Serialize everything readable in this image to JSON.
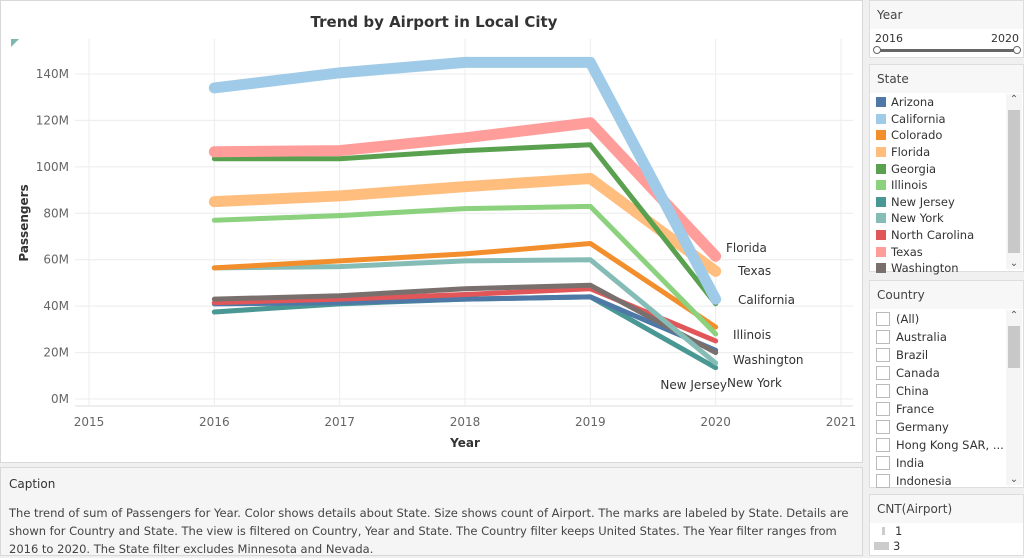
{
  "chart_data": {
    "type": "line",
    "title": "Trend by Airport in Local City",
    "xlabel": "Year",
    "ylabel": "Passengers",
    "x_ticks": [
      "2015",
      "2016",
      "2017",
      "2018",
      "2019",
      "2020",
      "2021"
    ],
    "y_ticks": [
      "0M",
      "20M",
      "40M",
      "60M",
      "80M",
      "100M",
      "120M",
      "140M"
    ],
    "xlim": [
      2015,
      2021
    ],
    "ylim": [
      0,
      140000000
    ],
    "x": [
      2016,
      2017,
      2018,
      2019,
      2020
    ],
    "series": [
      {
        "name": "California",
        "color": "#a0cbe8",
        "airports": 3,
        "values": [
          134,
          140.5,
          145,
          145,
          43
        ],
        "label": "California"
      },
      {
        "name": "Texas",
        "color": "#ff9d9a",
        "airports": 3,
        "values": [
          106.5,
          107,
          112.5,
          119,
          61.5
        ],
        "label": "Texas"
      },
      {
        "name": "Georgia",
        "color": "#59a14f",
        "airports": 1,
        "values": [
          103.5,
          103.5,
          107,
          109.5,
          41
        ],
        "label": ""
      },
      {
        "name": "Florida",
        "color": "#ffbe7d",
        "airports": 3,
        "values": [
          85,
          87.5,
          91.5,
          95,
          55
        ],
        "label": "Florida"
      },
      {
        "name": "Illinois",
        "color": "#8cd17d",
        "airports": 1,
        "values": [
          77,
          79,
          82,
          83,
          28
        ],
        "label": "Illinois"
      },
      {
        "name": "Colorado",
        "color": "#f28e2b",
        "airports": 1,
        "values": [
          56.5,
          59.5,
          62.5,
          67,
          31
        ],
        "label": ""
      },
      {
        "name": "New York",
        "color": "#86bcb6",
        "airports": 1,
        "values": [
          56.5,
          57,
          59.5,
          60,
          15.5
        ],
        "label": "New York"
      },
      {
        "name": "Washington",
        "color": "#79706e",
        "airports": 1,
        "values": [
          43,
          44.5,
          47.5,
          49,
          20
        ],
        "label": "Washington"
      },
      {
        "name": "North Carolina",
        "color": "#e15759",
        "airports": 1,
        "values": [
          41.5,
          43,
          45,
          47.5,
          25
        ],
        "label": ""
      },
      {
        "name": "Arizona",
        "color": "#4e79a7",
        "airports": 1,
        "values": [
          41,
          41.5,
          43,
          44,
          21
        ],
        "label": ""
      },
      {
        "name": "New Jersey",
        "color": "#499894",
        "airports": 1,
        "values": [
          37.5,
          41,
          43,
          44,
          13.5
        ],
        "label": "New Jersey"
      }
    ],
    "value_unit": "M"
  },
  "caption": {
    "title": "Caption",
    "text": "The trend of sum of Passengers for Year.  Color shows details about State.  Size shows count of Airport.  The marks are labeled by State.  Details are shown for Country and State. The view is filtered on Country, Year and State. The Country filter keeps United States. The Year filter ranges from 2016 to 2020. The State filter excludes Minnesota and Nevada."
  },
  "year_filter": {
    "title": "Year",
    "min": "2016",
    "max": "2020"
  },
  "state_legend": {
    "title": "State",
    "items": [
      {
        "label": "Arizona",
        "color": "#4e79a7"
      },
      {
        "label": "California",
        "color": "#a0cbe8"
      },
      {
        "label": "Colorado",
        "color": "#f28e2b"
      },
      {
        "label": "Florida",
        "color": "#ffbe7d"
      },
      {
        "label": "Georgia",
        "color": "#59a14f"
      },
      {
        "label": "Illinois",
        "color": "#8cd17d"
      },
      {
        "label": "New Jersey",
        "color": "#499894"
      },
      {
        "label": "New York",
        "color": "#86bcb6"
      },
      {
        "label": "North Carolina",
        "color": "#e15759"
      },
      {
        "label": "Texas",
        "color": "#ff9d9a"
      },
      {
        "label": "Washington",
        "color": "#79706e"
      }
    ]
  },
  "country_filter": {
    "title": "Country",
    "items": [
      "(All)",
      "Australia",
      "Brazil",
      "Canada",
      "China",
      "France",
      "Germany",
      "Hong Kong SAR, ...",
      "India",
      "Indonesia"
    ]
  },
  "size_legend": {
    "title": "CNT(Airport)",
    "items": [
      "1",
      "3"
    ]
  }
}
